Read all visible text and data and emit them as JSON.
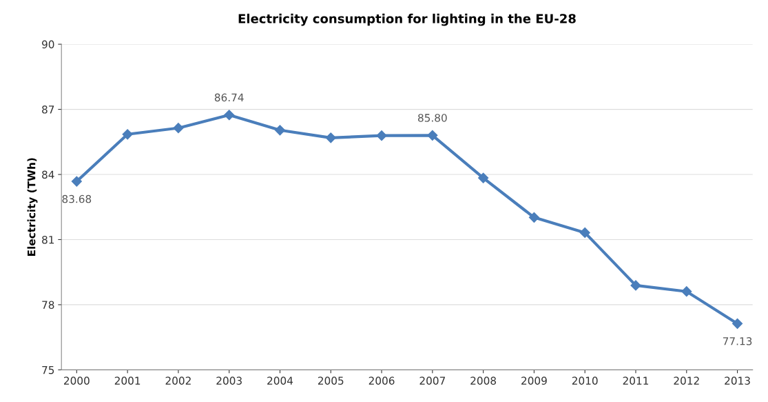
{
  "chart_data": {
    "type": "line",
    "title": "Electricity consumption for lighting in the EU-28",
    "ylabel": "Electricity (TWh)",
    "categories": [
      "2000",
      "2001",
      "2002",
      "2003",
      "2004",
      "2005",
      "2006",
      "2007",
      "2008",
      "2009",
      "2010",
      "2011",
      "2012",
      "2013"
    ],
    "series": [
      {
        "color": "#4a7ebb",
        "values": [
          83.68,
          85.85,
          86.14,
          86.74,
          86.04,
          85.69,
          85.79,
          85.8,
          83.84,
          82.02,
          81.32,
          78.89,
          78.61,
          77.13
        ],
        "value_labels": [
          "83.68",
          null,
          null,
          "86.74",
          null,
          null,
          null,
          "85.80",
          null,
          null,
          null,
          null,
          null,
          "77.13"
        ]
      }
    ],
    "ylim": [
      75,
      90
    ],
    "yticks": [
      75,
      78,
      81,
      84,
      87,
      90
    ],
    "grid": "y",
    "marker": "diamond",
    "line_style": "solid"
  }
}
